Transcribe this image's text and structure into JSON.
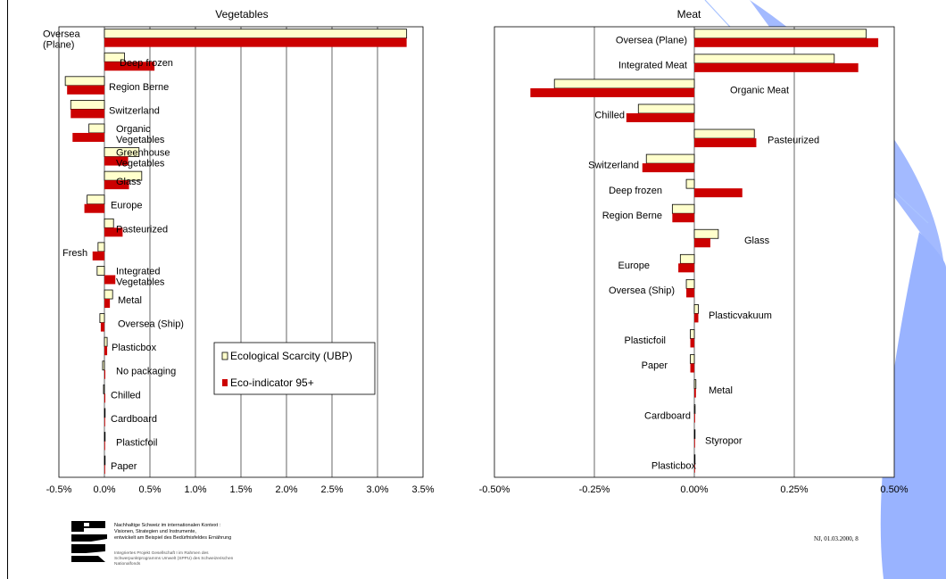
{
  "colors": {
    "ubp_fill": "#ffffcc",
    "eco_fill": "#cc0000",
    "deco_blue": "#99b3ff"
  },
  "legend": {
    "series1": "Ecological Scarcity (UBP)",
    "series2": "Eco-indicator 95+"
  },
  "chart_data": [
    {
      "type": "bar",
      "orientation": "horizontal",
      "title": "Vegetables",
      "xlim": [
        -0.5,
        3.5
      ],
      "xticks": [
        "-0.5%",
        "0.0%",
        "0.5%",
        "1.0%",
        "1.5%",
        "2.0%",
        "2.5%",
        "3.0%",
        "3.5%"
      ],
      "grid": true,
      "legend_position": "lower-right",
      "categories": [
        "Oversea (Plane)",
        "Deep frozen",
        "Region Berne",
        "Switzerland",
        "Organic Vegetables",
        "Greenhouse Vegetables",
        "Glass",
        "Europe",
        "Pasteurized",
        "Fresh",
        "Integrated Vegetables",
        "Metal",
        "Oversea (Ship)",
        "Plasticbox",
        "No packaging",
        "Chilled",
        "Cardboard",
        "Plasticfoil",
        "Paper"
      ],
      "series": [
        {
          "name": "Ecological Scarcity (UBP)",
          "values": [
            3.32,
            0.22,
            -0.43,
            -0.37,
            -0.17,
            0.38,
            0.41,
            -0.19,
            0.1,
            -0.07,
            -0.08,
            0.09,
            -0.05,
            0.03,
            -0.02,
            -0.01,
            0.005,
            0.005,
            0.005
          ]
        },
        {
          "name": "Eco-indicator 95+",
          "values": [
            3.32,
            0.55,
            -0.41,
            -0.37,
            -0.35,
            0.26,
            0.27,
            -0.22,
            0.2,
            -0.13,
            0.12,
            0.06,
            -0.04,
            0.03,
            0.01,
            0.01,
            0.005,
            0.005,
            0.005
          ]
        }
      ]
    },
    {
      "type": "bar",
      "orientation": "horizontal",
      "title": "Meat",
      "xlim": [
        -0.5,
        0.5
      ],
      "xticks": [
        "-0.50%",
        "-0.25%",
        "0.00%",
        "0.25%",
        "0.50%"
      ],
      "grid": true,
      "categories": [
        "Oversea (Plane)",
        "Integrated Meat",
        "Organic Meat",
        "Chilled",
        "Pasteurized",
        "Switzerland",
        "Deep frozen",
        "Region Berne",
        "Glass",
        "Europe",
        "Oversea (Ship)",
        "Plasticvakuum",
        "Plasticfoil",
        "Paper",
        "Metal",
        "Cardboard",
        "Styropor",
        "Plasticbox"
      ],
      "series": [
        {
          "name": "Ecological Scarcity (UBP)",
          "values": [
            0.43,
            0.35,
            -0.35,
            -0.14,
            0.15,
            -0.12,
            -0.02,
            -0.055,
            0.06,
            -0.035,
            -0.02,
            0.01,
            -0.01,
            -0.01,
            0.004,
            0.002,
            0.001,
            0.001
          ]
        },
        {
          "name": "Eco-indicator 95+",
          "values": [
            0.46,
            0.41,
            -0.41,
            -0.17,
            0.155,
            -0.13,
            0.12,
            -0.055,
            0.04,
            -0.04,
            -0.02,
            0.01,
            -0.01,
            -0.01,
            0.004,
            0.002,
            0.001,
            0.001
          ]
        }
      ]
    }
  ],
  "footer": {
    "line1": "Nachhaltige Schweiz im internationalen Kontext :",
    "line2": "Visionen, Strategien und Instrumente,",
    "line3": "entwickelt am Beispiel des Bedürfnisfeldes Ernährung",
    "line4": "",
    "line5": "Integriertes Projekt Gesellschaft I im Rahmen des",
    "line6": "Schwerpunktprogramms Umwelt (SPPU) des Schweizerischen",
    "line7": "Nationalfonds",
    "slide_ref": "NJ, 01.03.2000, 8"
  }
}
